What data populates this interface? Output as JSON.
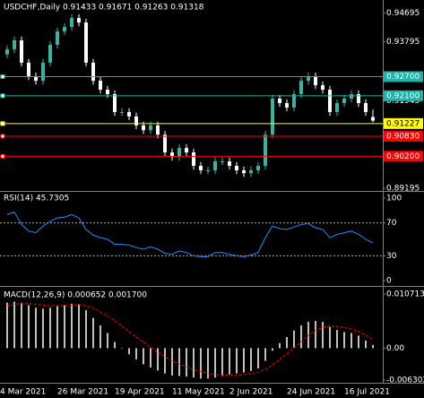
{
  "chart_data": [
    {
      "type": "candlestick",
      "title": "USDCHF,Daily  0.91433 0.91671 0.91263 0.91318",
      "categories": [
        "4 Mar 2021",
        null,
        null,
        null,
        null,
        null,
        null,
        null,
        "26 Mar 2021",
        null,
        null,
        null,
        null,
        null,
        null,
        null,
        "19 Apr 2021",
        null,
        null,
        null,
        null,
        null,
        null,
        null,
        "11 May 2021",
        null,
        null,
        null,
        null,
        null,
        null,
        null,
        "2 Jun 2021",
        null,
        null,
        null,
        null,
        null,
        null,
        null,
        "24 Jun 2021",
        null,
        null,
        null,
        null,
        null,
        null,
        null,
        "16 Jul 2021",
        null,
        null,
        null
      ],
      "open": [
        0.934,
        0.9356,
        0.9384,
        0.9314,
        0.9271,
        0.9257,
        0.9314,
        0.937,
        0.9412,
        0.9426,
        0.9454,
        0.944,
        0.9314,
        0.9257,
        0.9229,
        0.9215,
        0.9159,
        0.9159,
        0.9145,
        0.9117,
        0.9102,
        0.9117,
        0.9088,
        0.9032,
        0.9018,
        0.9046,
        0.9032,
        0.899,
        0.8976,
        0.8976,
        0.9004,
        0.9004,
        0.899,
        0.8976,
        0.8967,
        0.8976,
        0.899,
        0.9088,
        0.9201,
        0.9187,
        0.9173,
        0.9215,
        0.9257,
        0.9271,
        0.9243,
        0.9229,
        0.9159,
        0.9187,
        0.9201,
        0.9215,
        0.9187,
        0.91433
      ],
      "high": [
        0.9368,
        0.9396,
        0.9396,
        0.9326,
        0.9283,
        0.9326,
        0.9382,
        0.9424,
        0.9438,
        0.9466,
        0.9466,
        0.9452,
        0.9326,
        0.9269,
        0.9241,
        0.9227,
        0.9171,
        0.9171,
        0.9157,
        0.9129,
        0.9129,
        0.9129,
        0.91,
        0.9044,
        0.9058,
        0.9058,
        0.9044,
        0.9002,
        0.8988,
        0.9016,
        0.9016,
        0.9016,
        0.9002,
        0.8988,
        0.8988,
        0.9002,
        0.91,
        0.9213,
        0.9213,
        0.9199,
        0.9227,
        0.9269,
        0.9283,
        0.9283,
        0.9255,
        0.9241,
        0.9199,
        0.9213,
        0.9227,
        0.9227,
        0.9199,
        0.91671
      ],
      "low": [
        0.9328,
        0.9344,
        0.9302,
        0.9259,
        0.9245,
        0.9245,
        0.9302,
        0.9358,
        0.94,
        0.9414,
        0.9428,
        0.9302,
        0.9245,
        0.9217,
        0.9203,
        0.9147,
        0.9147,
        0.9133,
        0.9105,
        0.909,
        0.909,
        0.9076,
        0.902,
        0.9006,
        0.9006,
        0.902,
        0.8978,
        0.8964,
        0.8964,
        0.8964,
        0.8992,
        0.8978,
        0.8964,
        0.8955,
        0.8955,
        0.8964,
        0.8978,
        0.9076,
        0.9175,
        0.9161,
        0.9161,
        0.9203,
        0.9245,
        0.9231,
        0.9217,
        0.9147,
        0.9147,
        0.9175,
        0.9189,
        0.9175,
        0.9147,
        0.91263
      ],
      "close": [
        0.9356,
        0.9384,
        0.9314,
        0.9271,
        0.9257,
        0.9314,
        0.937,
        0.9412,
        0.9426,
        0.9454,
        0.944,
        0.9314,
        0.9257,
        0.9229,
        0.9215,
        0.9159,
        0.9159,
        0.9145,
        0.9117,
        0.9102,
        0.9117,
        0.9088,
        0.9032,
        0.9018,
        0.9046,
        0.9032,
        0.899,
        0.8976,
        0.8976,
        0.9004,
        0.9004,
        0.899,
        0.8976,
        0.8967,
        0.8976,
        0.899,
        0.9088,
        0.9201,
        0.9187,
        0.9173,
        0.9215,
        0.9257,
        0.9271,
        0.9243,
        0.9229,
        0.9159,
        0.9187,
        0.9201,
        0.9215,
        0.9187,
        0.9159,
        0.91318
      ],
      "up_color": "#3bb3a4",
      "down_color": "#ffffff",
      "ylim": [
        0.8914,
        0.9505
      ],
      "yticks": [
        0.94695,
        0.93795,
        0.91945,
        0.89195
      ],
      "levels": [
        {
          "value": 0.927,
          "label": "0.92700",
          "color": "#20b2aa"
        },
        {
          "value": 0.921,
          "label": "0.92100",
          "color": "#20b2aa"
        },
        {
          "value": 0.91227,
          "label": "0.91227",
          "color": "#ffff00"
        },
        {
          "value": 0.9083,
          "label": "0.90830",
          "color": "#ff0000"
        },
        {
          "value": 0.902,
          "label": "0.90200",
          "color": "#ff0000"
        }
      ]
    },
    {
      "type": "line",
      "title": "RSI(14) 45.7305",
      "series": [
        {
          "color": "#1e90ff",
          "values": [
            80,
            83,
            68,
            60,
            58,
            66,
            72,
            76,
            77,
            80,
            76,
            62,
            55,
            52,
            50,
            44,
            44,
            43,
            40,
            38,
            41,
            38,
            33,
            32,
            36,
            34,
            30,
            29,
            29,
            34,
            34,
            32,
            30,
            29,
            31,
            34,
            52,
            66,
            63,
            62,
            65,
            68,
            69,
            64,
            62,
            52,
            56,
            58,
            60,
            56,
            50,
            45.7305
          ]
        }
      ],
      "ylim": [
        0,
        100
      ],
      "yticks": [
        100,
        70,
        30,
        0
      ]
    },
    {
      "type": "macd",
      "title": "MACD(12,26,9) 0.000652 0.001700",
      "histogram": {
        "color": "#c0c0c0",
        "values": [
          0.009,
          0.0092,
          0.009,
          0.0085,
          0.008,
          0.0078,
          0.008,
          0.0083,
          0.0085,
          0.0088,
          0.0087,
          0.0075,
          0.006,
          0.0045,
          0.003,
          0.0012,
          0.0,
          -0.0012,
          -0.0022,
          -0.0032,
          -0.0038,
          -0.0044,
          -0.005,
          -0.0054,
          -0.0055,
          -0.0056,
          -0.0058,
          -0.006,
          -0.006,
          -0.0058,
          -0.0055,
          -0.0052,
          -0.005,
          -0.0048,
          -0.0045,
          -0.004,
          -0.0025,
          -0.0005,
          0.001,
          0.0022,
          0.0035,
          0.0045,
          0.0052,
          0.0054,
          0.0052,
          0.0042,
          0.0036,
          0.0032,
          0.003,
          0.0025,
          0.0015,
          0.000652
        ]
      },
      "signal": {
        "color": "#ff0000",
        "values": [
          0.0085,
          0.0087,
          0.0088,
          0.0088,
          0.0087,
          0.0085,
          0.0084,
          0.0084,
          0.0084,
          0.0085,
          0.0086,
          0.0084,
          0.0079,
          0.0072,
          0.0064,
          0.0054,
          0.0044,
          0.0033,
          0.0022,
          0.0012,
          0.0002,
          -0.0008,
          -0.0017,
          -0.0025,
          -0.0031,
          -0.0037,
          -0.0042,
          -0.0046,
          -0.005,
          -0.0052,
          -0.0053,
          -0.0053,
          -0.0053,
          -0.0052,
          -0.005,
          -0.0048,
          -0.0042,
          -0.0033,
          -0.0022,
          -0.0011,
          0.0001,
          0.0013,
          0.0025,
          0.0035,
          0.0042,
          0.0044,
          0.0043,
          0.0041,
          0.0038,
          0.0033,
          0.0026,
          0.0017
        ]
      },
      "ylim": [
        -0.006302,
        0.010713
      ],
      "yticks": [
        0.010713,
        {
          "value": 0,
          "label": "0.00"
        },
        -0.006302
      ]
    }
  ]
}
